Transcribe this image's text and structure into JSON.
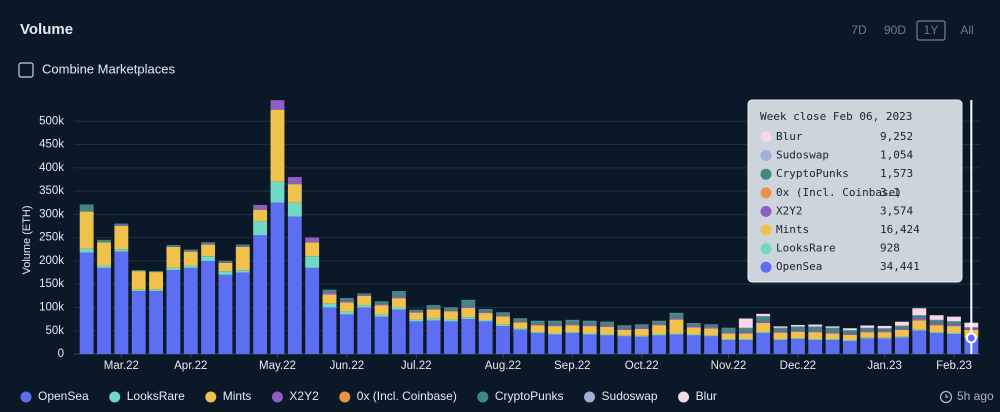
{
  "chart_data": {
    "type": "stacked_bar",
    "title": "Volume",
    "y_label": "Volume (ETH)",
    "tooltip_title": "Week close Feb 06, 2023",
    "categories": [
      null,
      null,
      "Mar.22",
      null,
      null,
      null,
      "Apr.22",
      null,
      null,
      null,
      null,
      "May.22",
      null,
      null,
      null,
      "Jun.22",
      null,
      null,
      null,
      "Jul.22",
      null,
      null,
      null,
      null,
      "Aug.22",
      null,
      null,
      null,
      "Sep.22",
      null,
      null,
      null,
      "Oct.22",
      null,
      null,
      null,
      null,
      "Nov.22",
      null,
      null,
      null,
      "Dec.22",
      null,
      null,
      null,
      null,
      "Jan.23",
      null,
      null,
      null,
      "Feb.23",
      null
    ],
    "ylim": [
      0,
      550000
    ],
    "yticks": [
      0,
      {
        "value": 50000,
        "label": "50k"
      },
      {
        "value": 100000,
        "label": "100k"
      },
      {
        "value": 150000,
        "label": "150k"
      },
      {
        "value": 200000,
        "label": "200k"
      },
      {
        "value": 250000,
        "label": "250k"
      },
      {
        "value": 300000,
        "label": "300k"
      },
      {
        "value": 350000,
        "label": "350k"
      },
      {
        "value": 400000,
        "label": "400k"
      },
      {
        "value": 450000,
        "label": "450k"
      },
      {
        "value": 500000,
        "label": "500k"
      }
    ],
    "grid": true,
    "series": [
      {
        "name": "OpenSea",
        "color": "#5d6ef2",
        "values": [
          218000,
          185000,
          220000,
          135000,
          135000,
          180000,
          185000,
          200000,
          170000,
          175000,
          255000,
          325000,
          295000,
          185000,
          100000,
          85000,
          100000,
          80000,
          95000,
          70000,
          72000,
          70000,
          75000,
          70000,
          60000,
          52000,
          45000,
          42000,
          45000,
          42000,
          40000,
          38000,
          37000,
          40000,
          42000,
          40000,
          38000,
          30000,
          30000,
          45000,
          30000,
          32000,
          30000,
          30000,
          28000,
          33000,
          33000,
          35000,
          50000,
          45000,
          43000,
          34441
        ],
        "value_labels": [
          null,
          null,
          null,
          null,
          null,
          null,
          null,
          null,
          null,
          null,
          null,
          null,
          null,
          null,
          null,
          null,
          null,
          null,
          null,
          null,
          null,
          null,
          null,
          null,
          null,
          null,
          null,
          null,
          null,
          null,
          null,
          null,
          null,
          null,
          null,
          null,
          null,
          null,
          null,
          null,
          null,
          null,
          null,
          null,
          null,
          null,
          null,
          null,
          null,
          null,
          null,
          "34,441"
        ]
      },
      {
        "name": "LooksRare",
        "color": "#6fd8c6",
        "values": [
          8000,
          5000,
          5000,
          3000,
          3000,
          5000,
          5000,
          10000,
          8000,
          5000,
          30000,
          45000,
          30000,
          25000,
          8000,
          6000,
          5000,
          5000,
          5000,
          4000,
          4000,
          4000,
          4000,
          3000,
          3000,
          3000,
          2000,
          2000,
          2000,
          2000,
          2000,
          2000,
          2000,
          2000,
          2000,
          2000,
          2000,
          2000,
          2000,
          2000,
          2000,
          2000,
          2000,
          2000,
          2000,
          2000,
          2000,
          2000,
          2000,
          2000,
          2000,
          928
        ],
        "value_labels": [
          null,
          null,
          null,
          null,
          null,
          null,
          null,
          null,
          null,
          null,
          null,
          null,
          null,
          null,
          null,
          null,
          null,
          null,
          null,
          null,
          null,
          null,
          null,
          null,
          null,
          null,
          null,
          null,
          null,
          null,
          null,
          null,
          null,
          null,
          null,
          null,
          null,
          null,
          null,
          null,
          null,
          null,
          null,
          null,
          null,
          null,
          null,
          null,
          null,
          null,
          null,
          "928"
        ]
      },
      {
        "name": "Mints",
        "color": "#efc24d",
        "values": [
          80000,
          50000,
          50000,
          40000,
          38000,
          45000,
          30000,
          25000,
          18000,
          50000,
          25000,
          155000,
          40000,
          30000,
          20000,
          20000,
          20000,
          20000,
          20000,
          15000,
          20000,
          18000,
          20000,
          15000,
          18000,
          13000,
          15000,
          16000,
          15000,
          16000,
          16000,
          12000,
          15000,
          20000,
          30000,
          15000,
          15000,
          12000,
          12000,
          20000,
          14000,
          14000,
          15000,
          12000,
          11000,
          12000,
          12000,
          15000,
          20000,
          15000,
          15000,
          16424
        ],
        "value_labels": [
          null,
          null,
          null,
          null,
          null,
          null,
          null,
          null,
          null,
          null,
          null,
          null,
          null,
          null,
          null,
          null,
          null,
          null,
          null,
          null,
          null,
          null,
          null,
          null,
          null,
          null,
          null,
          null,
          null,
          null,
          null,
          null,
          null,
          null,
          null,
          null,
          null,
          null,
          null,
          null,
          null,
          null,
          null,
          null,
          null,
          null,
          null,
          null,
          null,
          null,
          null,
          "16,424"
        ]
      },
      {
        "name": "X2Y2",
        "color": "#8d5fc6",
        "values": [
          0,
          0,
          2000,
          0,
          0,
          1000,
          1000,
          2000,
          1000,
          2000,
          10000,
          20000,
          15000,
          10000,
          5000,
          3000,
          2000,
          3000,
          3000,
          2000,
          2000,
          2000,
          3000,
          2000,
          2000,
          2000,
          2000,
          3000,
          3000,
          3000,
          3000,
          3000,
          3000,
          3000,
          3000,
          3000,
          3000,
          3000,
          3000,
          3000,
          3000,
          3000,
          3000,
          3000,
          3000,
          3000,
          3000,
          3000,
          5000,
          4000,
          4000,
          3574
        ],
        "value_labels": [
          null,
          null,
          null,
          null,
          null,
          null,
          null,
          null,
          null,
          null,
          null,
          null,
          null,
          null,
          null,
          null,
          null,
          null,
          null,
          null,
          null,
          null,
          null,
          null,
          null,
          null,
          null,
          null,
          null,
          null,
          null,
          null,
          null,
          null,
          null,
          null,
          null,
          null,
          null,
          null,
          null,
          null,
          null,
          null,
          null,
          null,
          null,
          null,
          null,
          null,
          null,
          "3,574"
        ]
      },
      {
        "name": "0x (Incl. Coinbase)",
        "color": "#ea924a",
        "values": [
          300,
          300,
          300,
          300,
          300,
          300,
          300,
          300,
          300,
          300,
          300,
          300,
          300,
          300,
          300,
          300,
          300,
          300,
          300,
          300,
          300,
          300,
          300,
          300,
          300,
          300,
          300,
          300,
          300,
          300,
          300,
          300,
          300,
          300,
          300,
          300,
          300,
          300,
          300,
          300,
          300,
          300,
          300,
          300,
          300,
          300,
          300,
          300,
          300,
          300,
          300,
          3.1
        ],
        "value_labels": [
          null,
          null,
          null,
          null,
          null,
          null,
          null,
          null,
          null,
          null,
          null,
          null,
          null,
          null,
          null,
          null,
          null,
          null,
          null,
          null,
          null,
          null,
          null,
          null,
          null,
          null,
          null,
          null,
          null,
          null,
          null,
          null,
          null,
          null,
          null,
          null,
          null,
          null,
          null,
          null,
          null,
          null,
          null,
          null,
          null,
          null,
          null,
          null,
          null,
          null,
          null,
          "3.1"
        ]
      },
      {
        "name": "CryptoPunks",
        "color": "#3e8a81",
        "values": [
          15000,
          5000,
          3000,
          2000,
          2000,
          3000,
          3000,
          3000,
          3000,
          3000,
          0,
          0,
          0,
          0,
          5000,
          6000,
          3000,
          5000,
          12000,
          4000,
          7000,
          6000,
          13000,
          5000,
          5000,
          5000,
          6000,
          7000,
          7000,
          7000,
          7000,
          5000,
          5000,
          5000,
          10000,
          5000,
          4000,
          8000,
          8000,
          10000,
          6000,
          7000,
          8000,
          8000,
          6000,
          5000,
          4000,
          5000,
          5000,
          6000,
          5000,
          1573
        ],
        "value_labels": [
          null,
          null,
          null,
          null,
          null,
          null,
          null,
          null,
          null,
          null,
          null,
          null,
          null,
          null,
          null,
          null,
          null,
          null,
          null,
          null,
          null,
          null,
          null,
          null,
          null,
          null,
          null,
          null,
          null,
          null,
          null,
          null,
          null,
          null,
          null,
          null,
          null,
          null,
          null,
          null,
          null,
          null,
          null,
          null,
          null,
          null,
          null,
          null,
          null,
          null,
          null,
          "1,573"
        ]
      },
      {
        "name": "Sudoswap",
        "color": "#9fb2d6",
        "values": [
          0,
          0,
          0,
          0,
          0,
          0,
          0,
          0,
          0,
          0,
          0,
          0,
          0,
          0,
          0,
          0,
          0,
          0,
          0,
          0,
          0,
          0,
          1000,
          1000,
          1000,
          1000,
          1000,
          1000,
          1000,
          1000,
          1000,
          1000,
          1000,
          1000,
          1000,
          1000,
          1000,
          1000,
          1000,
          1000,
          1000,
          1000,
          1000,
          1000,
          1000,
          1000,
          1000,
          1000,
          1000,
          1000,
          1000,
          1054
        ],
        "value_labels": [
          null,
          null,
          null,
          null,
          null,
          null,
          null,
          null,
          null,
          null,
          null,
          null,
          null,
          null,
          null,
          null,
          null,
          null,
          null,
          null,
          null,
          null,
          null,
          null,
          null,
          null,
          null,
          null,
          null,
          null,
          null,
          null,
          null,
          null,
          null,
          null,
          null,
          null,
          null,
          null,
          null,
          null,
          null,
          null,
          null,
          null,
          null,
          null,
          null,
          null,
          null,
          "1,054"
        ]
      },
      {
        "name": "Blur",
        "color": "#f8d7e6",
        "values": [
          0,
          0,
          0,
          0,
          0,
          0,
          0,
          0,
          0,
          0,
          0,
          0,
          0,
          0,
          0,
          0,
          0,
          0,
          0,
          0,
          0,
          0,
          0,
          0,
          0,
          0,
          0,
          0,
          0,
          0,
          0,
          0,
          0,
          0,
          0,
          0,
          0,
          0,
          20000,
          5000,
          3000,
          3000,
          4000,
          3000,
          4000,
          5000,
          5000,
          8000,
          15000,
          10000,
          10000,
          9252
        ],
        "value_labels": [
          null,
          null,
          null,
          null,
          null,
          null,
          null,
          null,
          null,
          null,
          null,
          null,
          null,
          null,
          null,
          null,
          null,
          null,
          null,
          null,
          null,
          null,
          null,
          null,
          null,
          null,
          null,
          null,
          null,
          null,
          null,
          null,
          null,
          null,
          null,
          null,
          null,
          null,
          null,
          null,
          null,
          null,
          null,
          null,
          null,
          null,
          null,
          null,
          null,
          null,
          null,
          "9,252"
        ]
      }
    ]
  },
  "controls": {
    "ranges": [
      "7D",
      "90D",
      "1Y",
      "All"
    ],
    "selected_range": "1Y",
    "combine_label": "Combine Marketplaces",
    "combined": false,
    "updated": "5h ago"
  }
}
